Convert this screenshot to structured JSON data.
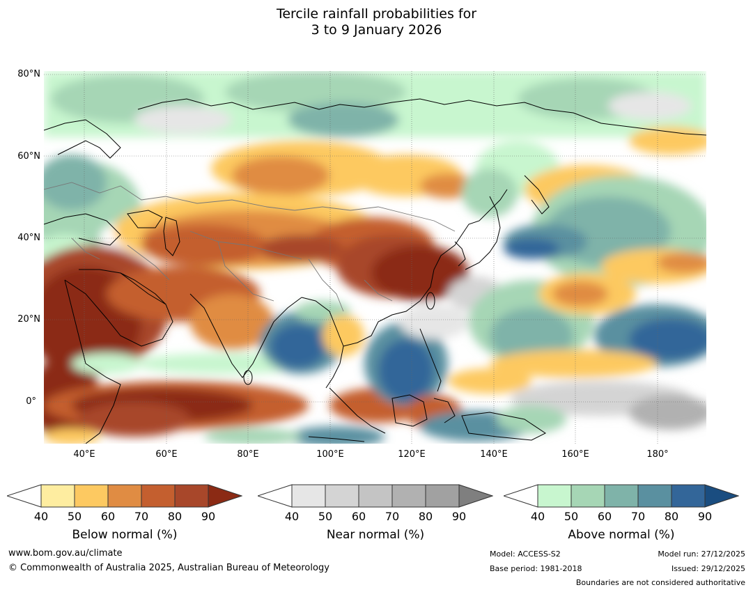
{
  "title": {
    "line1": "Tercile rainfall probabilities for",
    "line2": "3 to 9 January 2026"
  },
  "map": {
    "lat_labels": [
      "80°N",
      "60°N",
      "40°N",
      "20°N",
      "0°"
    ],
    "lon_labels": [
      "40°E",
      "60°E",
      "80°E",
      "100°E",
      "120°E",
      "140°E",
      "160°E",
      "180°"
    ]
  },
  "legends": {
    "below": {
      "title": "Below normal (%)",
      "ticks": [
        "40",
        "50",
        "60",
        "70",
        "80",
        "90"
      ],
      "colors": [
        "#ffffff",
        "#feeda0",
        "#fdc961",
        "#e08c43",
        "#c45f2f",
        "#a8472a",
        "#8b2a14"
      ]
    },
    "near": {
      "title": "Near normal (%)",
      "ticks": [
        "40",
        "50",
        "60",
        "70",
        "80",
        "90"
      ],
      "colors": [
        "#ffffff",
        "#e6e6e6",
        "#d4d4d4",
        "#c4c4c4",
        "#b1b1b1",
        "#a1a1a1",
        "#7f7f7f"
      ]
    },
    "above": {
      "title": "Above normal (%)",
      "ticks": [
        "40",
        "50",
        "60",
        "70",
        "80",
        "90"
      ],
      "colors": [
        "#ffffff",
        "#c8f6cf",
        "#a6d6b5",
        "#7fb3a9",
        "#5a90a0",
        "#336699",
        "#1a4d80"
      ]
    }
  },
  "footer": {
    "website": "www.bom.gov.au/climate",
    "copyright": "© Commonwealth of Australia 2025, Australian Bureau of Meteorology",
    "model": "Model: ACCESS-S2",
    "base_period": "Base period: 1981-2018",
    "model_run": "Model run: 27/12/2025",
    "issued": "Issued: 29/12/2025",
    "disclaimer": "Boundaries are not considered authoritative"
  }
}
